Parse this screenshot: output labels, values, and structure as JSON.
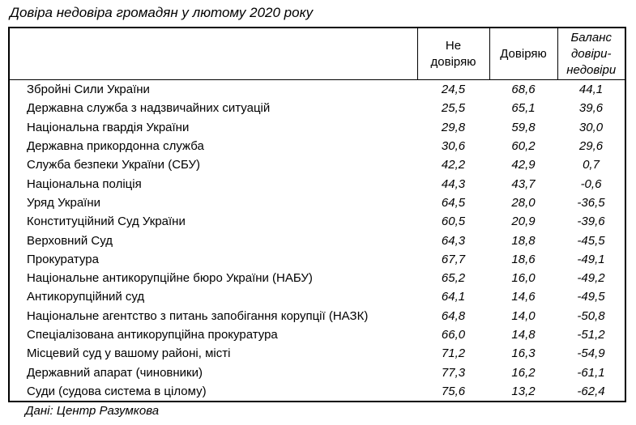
{
  "title": "Довіра недовіра громадян у лютому 2020 року",
  "source": "Дані: Центр Разумкова",
  "table": {
    "columns": {
      "institution": {
        "label": ""
      },
      "no_trust": {
        "label": "Не довіряю",
        "lines": [
          "Не",
          "довіряю"
        ]
      },
      "trust": {
        "label": "Довіряю",
        "lines": [
          "Довіряю"
        ]
      },
      "balance": {
        "label": "Баланс довіри-недовіри",
        "lines": [
          "Баланс",
          "довіри-",
          "недовіри"
        ]
      }
    },
    "rows": [
      {
        "name": "Збройні Сили України",
        "no_trust": "24,5",
        "trust": "68,6",
        "balance": "44,1"
      },
      {
        "name": "Державна служба з надзвичайних ситуацій",
        "no_trust": "25,5",
        "trust": "65,1",
        "balance": "39,6"
      },
      {
        "name": "Національна гвардія України",
        "no_trust": "29,8",
        "trust": "59,8",
        "balance": "30,0"
      },
      {
        "name": "Державна прикордонна служба",
        "no_trust": "30,6",
        "trust": "60,2",
        "balance": "29,6"
      },
      {
        "name": "Служба безпеки України (СБУ)",
        "no_trust": "42,2",
        "trust": "42,9",
        "balance": "0,7"
      },
      {
        "name": "Національна поліція",
        "no_trust": "44,3",
        "trust": "43,7",
        "balance": "-0,6"
      },
      {
        "name": "Уряд України",
        "no_trust": "64,5",
        "trust": "28,0",
        "balance": "-36,5"
      },
      {
        "name": "Конституційний Суд України",
        "no_trust": "60,5",
        "trust": "20,9",
        "balance": "-39,6"
      },
      {
        "name": "Верховний Суд",
        "no_trust": "64,3",
        "trust": "18,8",
        "balance": "-45,5"
      },
      {
        "name": "Прокуратура",
        "no_trust": "67,7",
        "trust": "18,6",
        "balance": "-49,1"
      },
      {
        "name": "Національне антикорупційне бюро України (НАБУ)",
        "no_trust": "65,2",
        "trust": "16,0",
        "balance": "-49,2"
      },
      {
        "name": "Антикорупційний суд",
        "no_trust": "64,1",
        "trust": "14,6",
        "balance": "-49,5"
      },
      {
        "name": "Національне агентство з питань запобігання корупції (НАЗК)",
        "no_trust": "64,8",
        "trust": "14,0",
        "balance": "-50,8"
      },
      {
        "name": "Спеціалізована антикорупційна прокуратура",
        "no_trust": "66,0",
        "trust": "14,8",
        "balance": "-51,2"
      },
      {
        "name": "Місцевий суд у вашому районі, місті",
        "no_trust": "71,2",
        "trust": "16,3",
        "balance": "-54,9"
      },
      {
        "name": "Державний апарат (чиновники)",
        "no_trust": "77,3",
        "trust": "16,2",
        "balance": "-61,1"
      },
      {
        "name": "Суди (судова система в цілому)",
        "no_trust": "75,6",
        "trust": "13,2",
        "balance": "-62,4"
      }
    ]
  },
  "chart_data": {
    "type": "table",
    "title": "Довіра недовіра громадян у лютому 2020 року",
    "source": "Дані: Центр Разумкова",
    "categories": [
      "Збройні Сили України",
      "Державна служба з надзвичайних ситуацій",
      "Національна гвардія України",
      "Державна прикордонна служба",
      "Служба безпеки України (СБУ)",
      "Національна поліція",
      "Уряд України",
      "Конституційний Суд України",
      "Верховний Суд",
      "Прокуратура",
      "Національне антикорупційне бюро України (НАБУ)",
      "Антикорупційний суд",
      "Національне агентство з питань запобігання корупції (НАЗК)",
      "Спеціалізована антикорупційна прокуратура",
      "Місцевий суд у вашому районі, місті",
      "Державний апарат (чиновники)",
      "Суди (судова система в цілому)"
    ],
    "series": [
      {
        "name": "Не довіряю",
        "values": [
          24.5,
          25.5,
          29.8,
          30.6,
          42.2,
          44.3,
          64.5,
          60.5,
          64.3,
          67.7,
          65.2,
          64.1,
          64.8,
          66.0,
          71.2,
          77.3,
          75.6
        ]
      },
      {
        "name": "Довіряю",
        "values": [
          68.6,
          65.1,
          59.8,
          60.2,
          42.9,
          43.7,
          28.0,
          20.9,
          18.8,
          18.6,
          16.0,
          14.6,
          14.0,
          14.8,
          16.3,
          16.2,
          13.2
        ]
      },
      {
        "name": "Баланс довіри-недовіри",
        "values": [
          44.1,
          39.6,
          30.0,
          29.6,
          0.7,
          -0.6,
          -36.5,
          -39.6,
          -45.5,
          -49.1,
          -49.2,
          -49.5,
          -50.8,
          -51.2,
          -54.9,
          -61.1,
          -62.4
        ]
      }
    ]
  }
}
